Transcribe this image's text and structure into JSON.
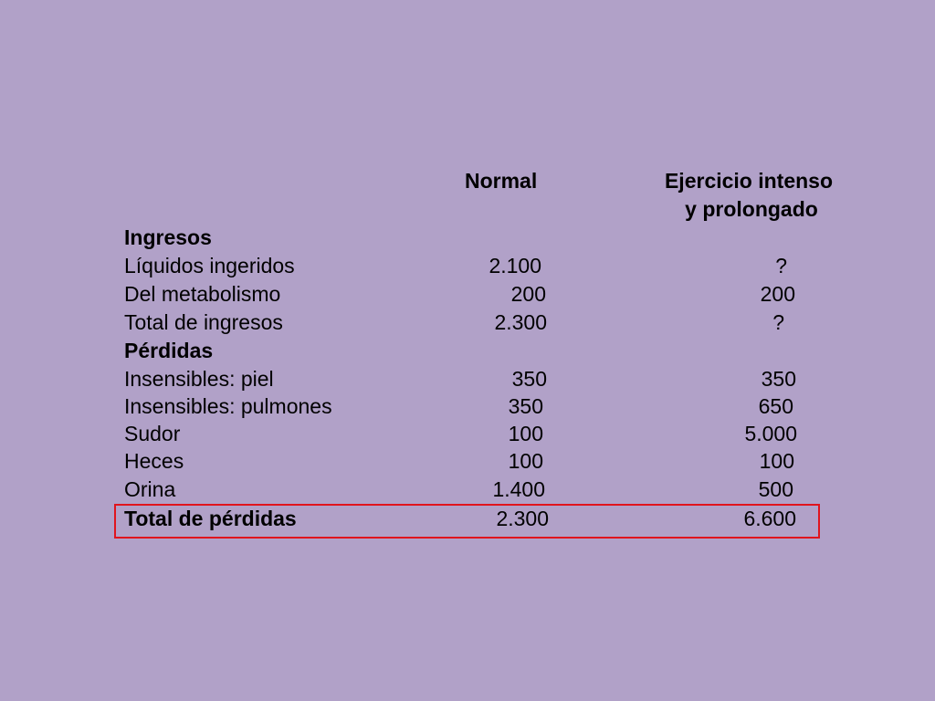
{
  "table": {
    "header": {
      "col_normal": "Normal",
      "col_exercise_line1": "Ejercicio intenso",
      "col_exercise_line2": "y prolongado"
    },
    "sections": {
      "ingresos": "Ingresos",
      "perdidas": "Pérdidas"
    },
    "rows": [
      {
        "label": "Líquidos ingeridos",
        "normal": "2.100",
        "exercise": "?"
      },
      {
        "label": "Del metabolismo",
        "normal": "200",
        "exercise": "200"
      },
      {
        "label": "Total de ingresos",
        "normal": "2.300",
        "exercise": "?"
      },
      {
        "label": "Insensibles: piel",
        "normal": "350",
        "exercise": "350"
      },
      {
        "label": "Insensibles: pulmones",
        "normal": "350",
        "exercise": "650"
      },
      {
        "label": "Sudor",
        "normal": "100",
        "exercise": "5.000"
      },
      {
        "label": "Heces",
        "normal": "100",
        "exercise": "100"
      },
      {
        "label": "Orina",
        "normal": "1.400",
        "exercise": "500"
      },
      {
        "label": "Total de pérdidas",
        "normal": "2.300",
        "exercise": "6.600"
      }
    ]
  },
  "colors": {
    "background": "#b1a1c8",
    "highlight": "#e0141e"
  }
}
